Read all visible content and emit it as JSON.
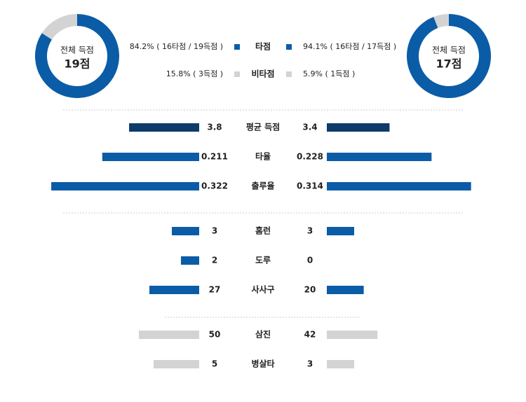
{
  "donuts": [
    {
      "caption": "전체 득점",
      "total": "19점"
    },
    {
      "caption": "전체 득점",
      "total": "17점"
    }
  ],
  "legend": {
    "rows": [
      {
        "label": "타점",
        "color": "#0b5ca6",
        "left": {
          "value": 84.2,
          "label": "84.2% ( 16타점 / 19득점 )"
        },
        "right": {
          "value": 94.1,
          "label": "94.1% ( 16타점 / 17득점 )"
        }
      },
      {
        "label": "비타점",
        "color": "#d3d3d3",
        "left": {
          "value": 15.8,
          "label": "15.8% ( 3득점 )"
        },
        "right": {
          "value": 5.9,
          "label": "5.9% ( 1득점 )"
        }
      }
    ]
  },
  "groups": [
    [
      {
        "label": "평균 득점",
        "left": 3.8,
        "right": 3.4,
        "color": "#0d3b6a"
      },
      {
        "label": "타율",
        "left": 0.211,
        "right": 0.228,
        "color": "#0b5ca6"
      },
      {
        "label": "출루율",
        "left": 0.322,
        "right": 0.314,
        "color": "#0b5ca6"
      }
    ],
    [
      {
        "label": "홈런",
        "left": 3,
        "right": 3,
        "color": "#0b5ca6"
      },
      {
        "label": "도루",
        "left": 2,
        "right": 0,
        "color": "#0b5ca6"
      },
      {
        "label": "사사구",
        "left": 27,
        "right": 20,
        "color": "#0b5ca6"
      }
    ],
    [
      {
        "label": "삼진",
        "left": 50,
        "right": 42,
        "color": "#d3d3d3"
      },
      {
        "label": "병살타",
        "left": 5,
        "right": 3,
        "color": "#d3d3d3"
      }
    ]
  ]
}
